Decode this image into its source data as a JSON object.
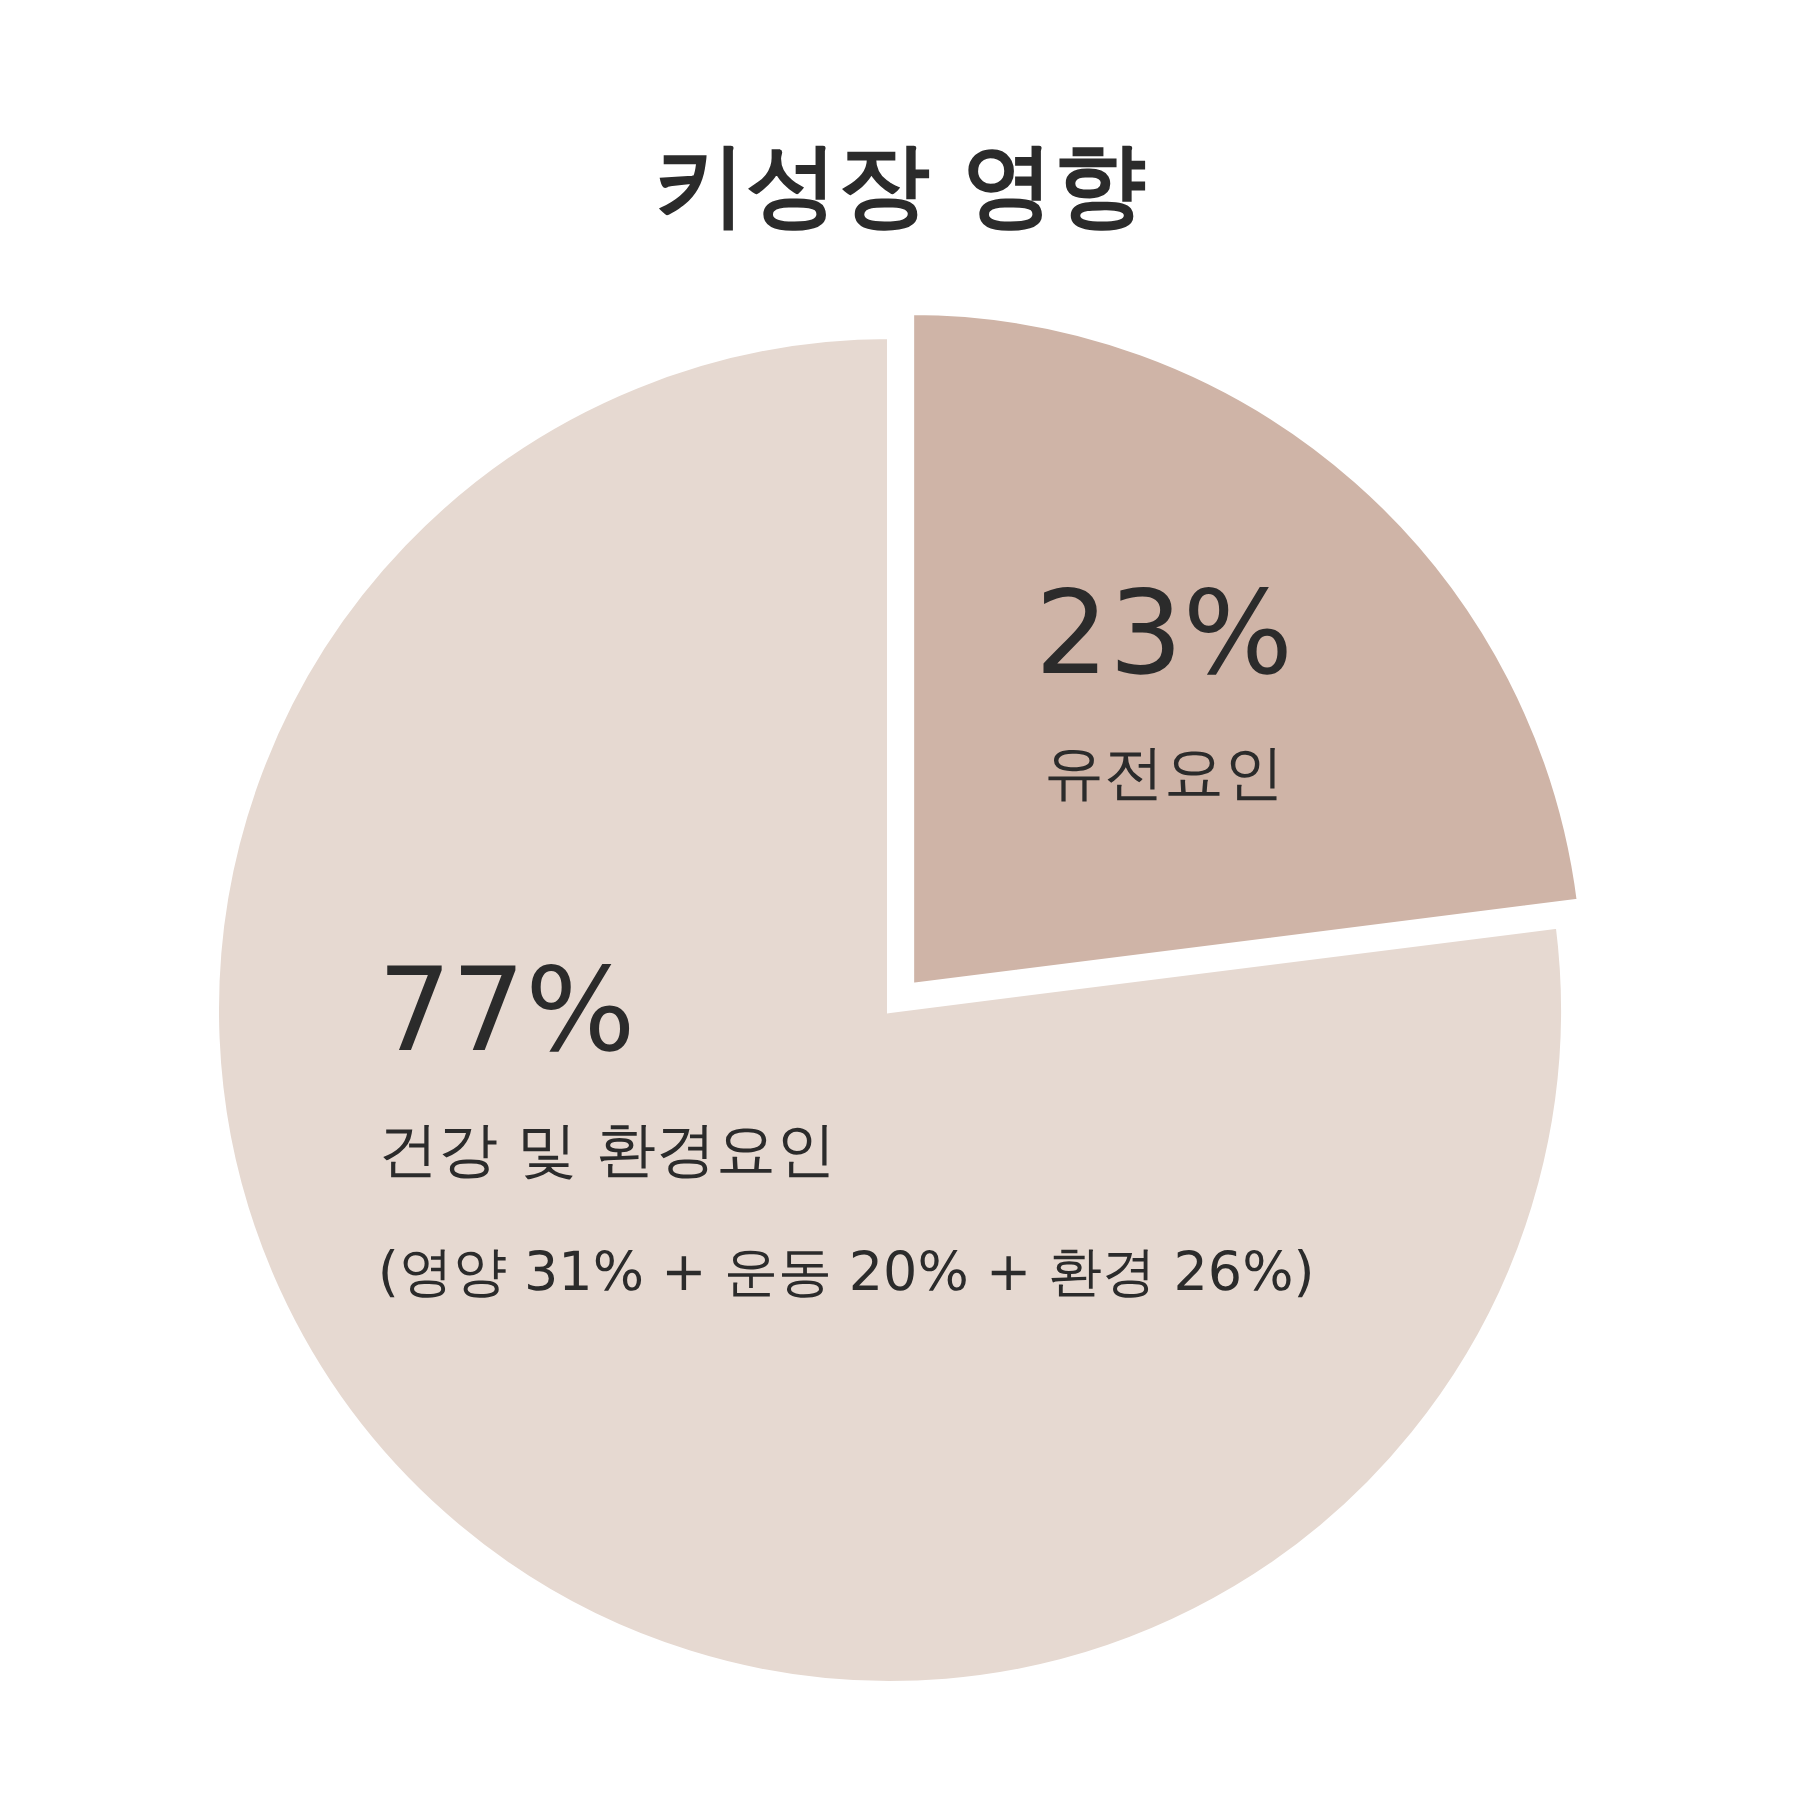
{
  "chart_data": {
    "type": "pie",
    "title": "키성장 영향",
    "categories": [
      "유전요인",
      "건강 및 환경요인"
    ],
    "values": [
      23,
      77
    ],
    "colors": [
      "#cfb4a7",
      "#e6d9d1"
    ],
    "value_labels": [
      "23%",
      "77%"
    ],
    "annotations": [
      "(영양 31% + 운동 20% + 환경 26%)"
    ]
  }
}
